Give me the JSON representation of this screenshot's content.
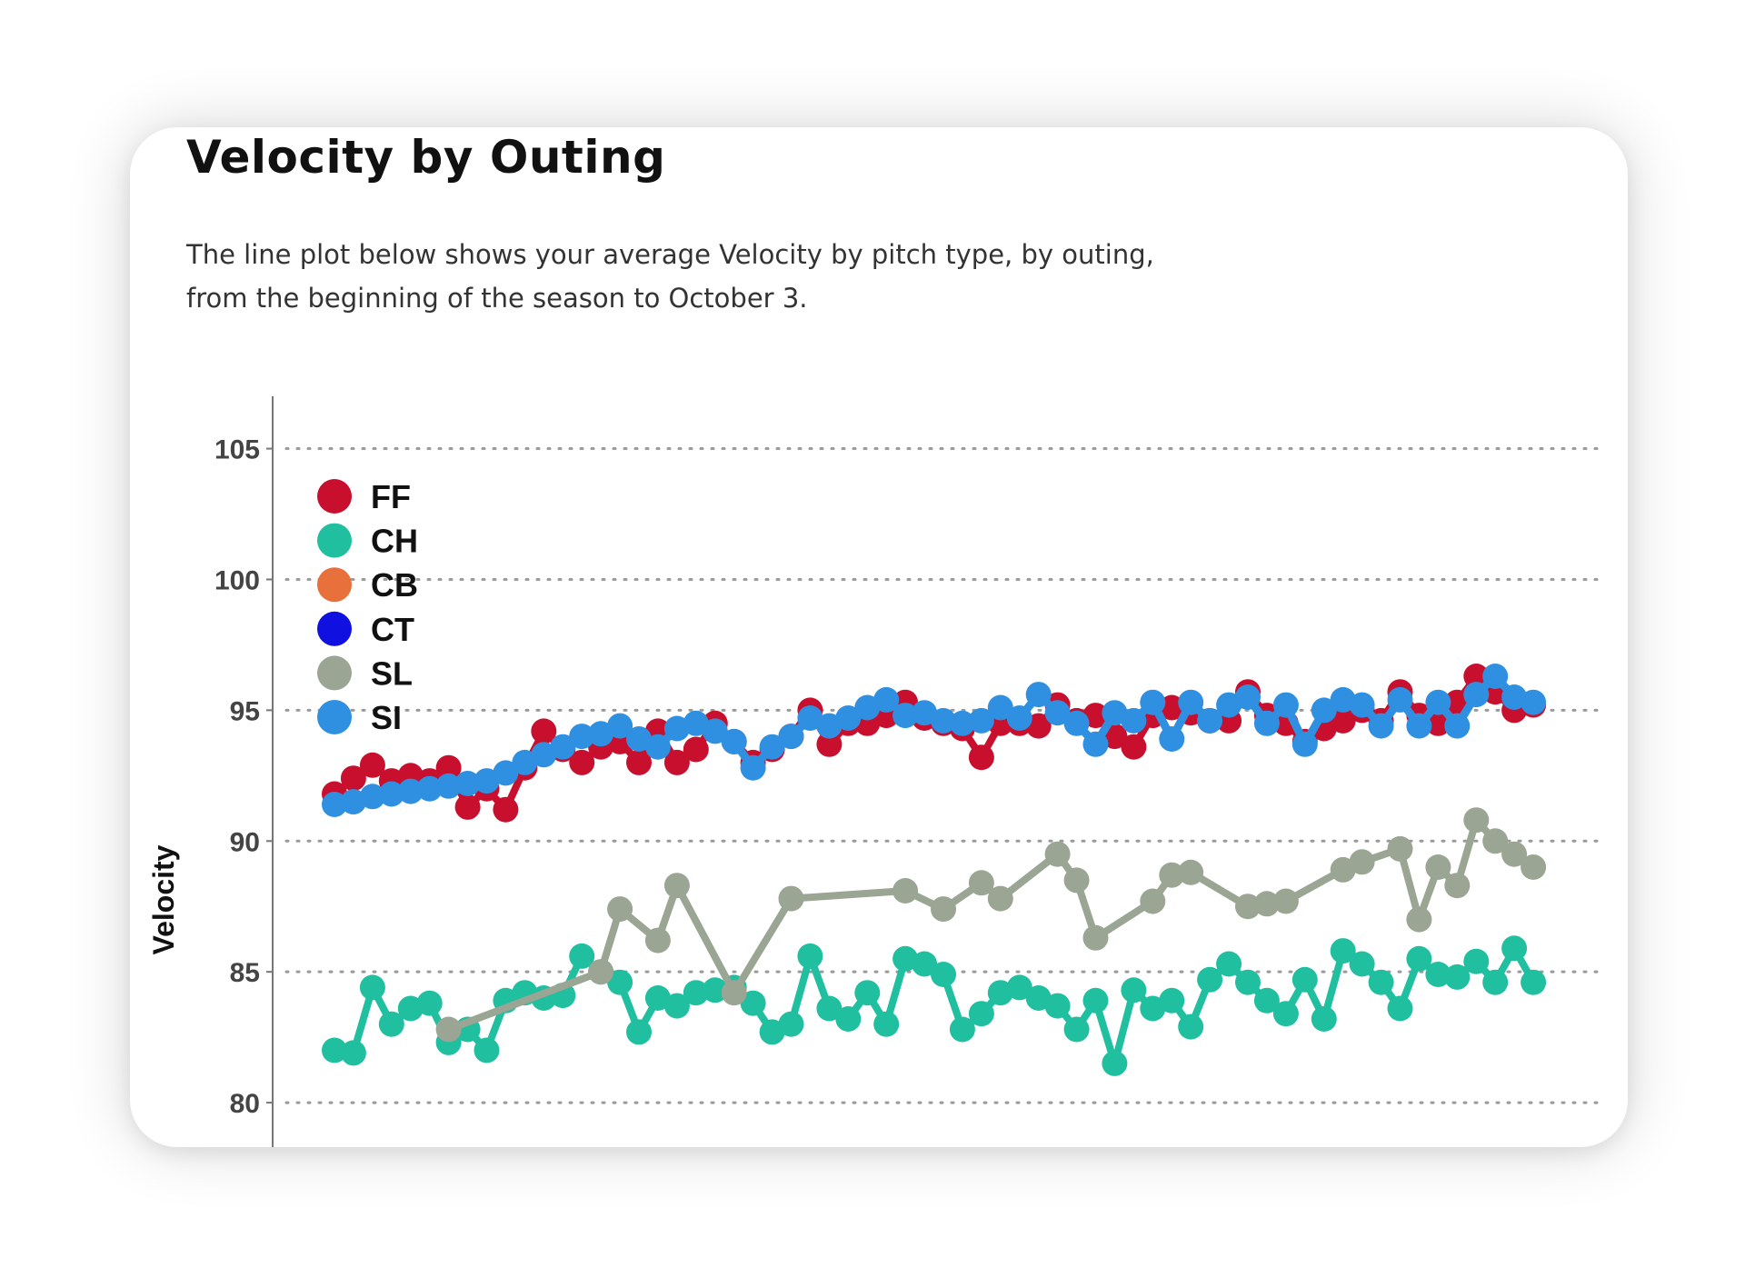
{
  "card": {
    "title": "Velocity by Outing",
    "description": "The line plot below shows your average Velocity by pitch type, by outing, from the beginning of the season to October 3."
  },
  "chart_data": {
    "type": "line",
    "ylabel": "Velocity",
    "xlabel": "",
    "ylim": [
      78.3,
      107
    ],
    "xlim": [
      0,
      64
    ],
    "yticks": [
      80,
      85,
      90,
      95,
      100,
      105
    ],
    "grid": "horizontal dotted",
    "legend_position": "top-left",
    "series": [
      {
        "name": "FF",
        "color": "#c8102e",
        "x": [
          0,
          1,
          2,
          3,
          4,
          5,
          6,
          7,
          8,
          9,
          10,
          11,
          12,
          13,
          14,
          15,
          16,
          17,
          18,
          19,
          20,
          21,
          22,
          23,
          24,
          25,
          26,
          27,
          28,
          29,
          30,
          31,
          32,
          33,
          34,
          35,
          36,
          37,
          38,
          39,
          40,
          41,
          42,
          43,
          44,
          45,
          46,
          47,
          48,
          49,
          50,
          51,
          52,
          53,
          54,
          55,
          56,
          57,
          58,
          59,
          60,
          61,
          62,
          63
        ],
        "y": [
          91.8,
          92.4,
          92.9,
          92.3,
          92.5,
          92.3,
          92.8,
          91.3,
          92.0,
          91.2,
          92.8,
          94.2,
          93.5,
          93.0,
          93.6,
          93.8,
          93.0,
          94.2,
          93.0,
          93.5,
          94.5,
          93.8,
          93.0,
          93.5,
          94.0,
          95.0,
          93.7,
          94.5,
          94.5,
          94.8,
          95.3,
          94.7,
          94.5,
          94.3,
          93.2,
          94.5,
          94.5,
          94.4,
          95.2,
          94.6,
          94.8,
          94.0,
          93.6,
          94.8,
          95.1,
          94.9,
          94.6,
          94.6,
          95.7,
          94.8,
          94.5,
          93.8,
          94.3,
          94.6,
          95.0,
          94.6,
          95.7,
          94.8,
          94.5,
          95.3,
          96.3,
          95.7,
          95.0,
          95.2
        ]
      },
      {
        "name": "CH",
        "color": "#1fbf9f",
        "x": [
          0,
          1,
          2,
          3,
          4,
          5,
          6,
          7,
          8,
          9,
          10,
          11,
          12,
          13,
          14,
          15,
          16,
          17,
          18,
          19,
          20,
          21,
          22,
          23,
          24,
          25,
          26,
          27,
          28,
          29,
          30,
          31,
          32,
          33,
          34,
          35,
          36,
          37,
          38,
          39,
          40,
          41,
          42,
          43,
          44,
          45,
          46,
          47,
          48,
          49,
          50,
          51,
          52,
          53,
          54,
          55,
          56,
          57,
          58,
          59,
          60,
          61,
          62,
          63
        ],
        "y": [
          82.0,
          81.9,
          84.4,
          83.0,
          83.6,
          83.8,
          82.3,
          82.8,
          82.0,
          83.9,
          84.2,
          84.0,
          84.1,
          85.6,
          85.0,
          84.6,
          82.7,
          84.0,
          83.7,
          84.2,
          84.3,
          84.4,
          83.8,
          82.7,
          83.0,
          85.6,
          83.6,
          83.2,
          84.2,
          83.0,
          85.5,
          85.3,
          84.9,
          82.8,
          83.4,
          84.2,
          84.4,
          84.0,
          83.7,
          82.8,
          83.9,
          81.5,
          84.3,
          83.6,
          83.9,
          82.9,
          84.7,
          85.3,
          84.6,
          83.9,
          83.4,
          84.7,
          83.2,
          85.8,
          85.3,
          84.6,
          83.6,
          85.5,
          84.9,
          84.8,
          85.4,
          84.6,
          85.9,
          84.6
        ]
      },
      {
        "name": "CB",
        "color": "#e8703a",
        "x": [],
        "y": []
      },
      {
        "name": "CT",
        "color": "#1010e0",
        "x": [],
        "y": []
      },
      {
        "name": "SL",
        "color": "#9aa593",
        "x": [
          6,
          14,
          15,
          17,
          18,
          21,
          24,
          30,
          32,
          34,
          35,
          38,
          39,
          40,
          43,
          44,
          45,
          48,
          49,
          50,
          53,
          54,
          56,
          57,
          58,
          59,
          60,
          61,
          62,
          63
        ],
        "y": [
          82.8,
          85.0,
          87.4,
          86.2,
          88.3,
          84.2,
          87.8,
          88.1,
          87.4,
          88.4,
          87.8,
          89.5,
          88.5,
          86.3,
          87.7,
          88.7,
          88.8,
          87.5,
          87.6,
          87.7,
          88.9,
          89.2,
          89.7,
          87.0,
          89.0,
          88.3,
          90.8,
          90.0,
          89.5,
          89.0
        ]
      },
      {
        "name": "SI",
        "color": "#2f8fe0",
        "x": [
          0,
          1,
          2,
          3,
          4,
          5,
          6,
          7,
          8,
          9,
          10,
          11,
          12,
          13,
          14,
          15,
          16,
          17,
          18,
          19,
          20,
          21,
          22,
          23,
          24,
          25,
          26,
          27,
          28,
          29,
          30,
          31,
          32,
          33,
          34,
          35,
          36,
          37,
          38,
          39,
          40,
          41,
          42,
          43,
          44,
          45,
          46,
          47,
          48,
          49,
          50,
          51,
          52,
          53,
          54,
          55,
          56,
          57,
          58,
          59,
          60,
          61,
          62,
          63
        ],
        "y": [
          91.4,
          91.5,
          91.7,
          91.8,
          91.9,
          92.0,
          92.1,
          92.2,
          92.3,
          92.6,
          93.0,
          93.3,
          93.6,
          94.0,
          94.1,
          94.4,
          93.9,
          93.6,
          94.3,
          94.5,
          94.2,
          93.8,
          92.8,
          93.6,
          94.0,
          94.7,
          94.4,
          94.7,
          95.1,
          95.4,
          94.8,
          94.9,
          94.6,
          94.5,
          94.6,
          95.1,
          94.7,
          95.6,
          94.9,
          94.5,
          93.7,
          94.9,
          94.6,
          95.3,
          93.9,
          95.3,
          94.6,
          95.2,
          95.5,
          94.5,
          95.2,
          93.7,
          95.0,
          95.4,
          95.2,
          94.4,
          95.4,
          94.4,
          95.3,
          94.4,
          95.6,
          96.3,
          95.5,
          95.3
        ]
      }
    ]
  }
}
